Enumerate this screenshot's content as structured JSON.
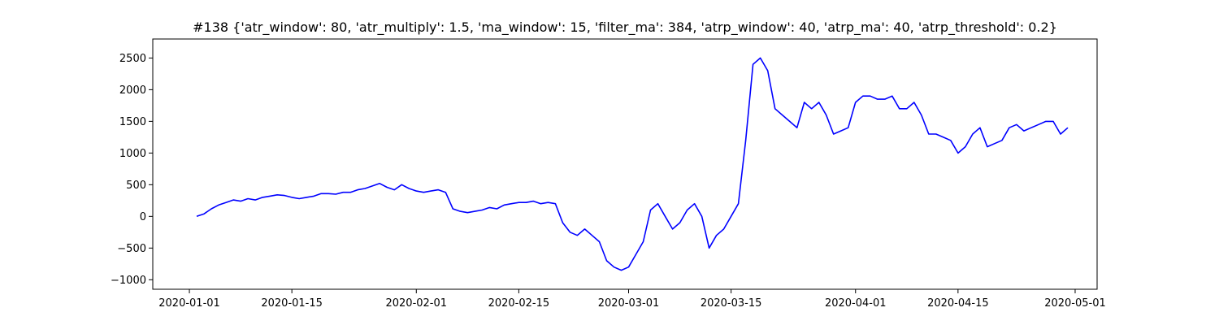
{
  "chart_data": {
    "type": "line",
    "title": "#138 {'atr_window': 80, 'atr_multiply': 1.5, 'ma_window': 15, 'filter_ma': 384, 'atrp_window': 40, 'atrp_ma': 40, 'atrp_threshold': 0.2}",
    "xlabel": "",
    "ylabel": "",
    "x_type": "date",
    "xlim": [
      "2019-12-27",
      "2020-05-04"
    ],
    "ylim": [
      -1150,
      2800
    ],
    "x_ticks": [
      "2020-01-01",
      "2020-01-15",
      "2020-02-01",
      "2020-02-15",
      "2020-03-01",
      "2020-03-15",
      "2020-04-01",
      "2020-04-15",
      "2020-05-01"
    ],
    "y_ticks": [
      -1000,
      -500,
      0,
      500,
      1000,
      1500,
      2000,
      2500
    ],
    "grid": false,
    "colors": {
      "line": "#0000ff"
    },
    "series": [
      {
        "x": [
          "2020-01-02",
          "2020-01-03",
          "2020-01-04",
          "2020-01-05",
          "2020-01-06",
          "2020-01-07",
          "2020-01-08",
          "2020-01-09",
          "2020-01-10",
          "2020-01-11",
          "2020-01-12",
          "2020-01-13",
          "2020-01-14",
          "2020-01-15",
          "2020-01-16",
          "2020-01-17",
          "2020-01-18",
          "2020-01-19",
          "2020-01-20",
          "2020-01-21",
          "2020-01-22",
          "2020-01-23",
          "2020-01-24",
          "2020-01-25",
          "2020-01-26",
          "2020-01-27",
          "2020-01-28",
          "2020-01-29",
          "2020-01-30",
          "2020-01-31",
          "2020-02-01",
          "2020-02-02",
          "2020-02-03",
          "2020-02-04",
          "2020-02-05",
          "2020-02-06",
          "2020-02-07",
          "2020-02-08",
          "2020-02-09",
          "2020-02-10",
          "2020-02-11",
          "2020-02-12",
          "2020-02-13",
          "2020-02-14",
          "2020-02-15",
          "2020-02-16",
          "2020-02-17",
          "2020-02-18",
          "2020-02-19",
          "2020-02-20",
          "2020-02-21",
          "2020-02-22",
          "2020-02-23",
          "2020-02-24",
          "2020-02-25",
          "2020-02-26",
          "2020-02-27",
          "2020-02-28",
          "2020-02-29",
          "2020-03-01",
          "2020-03-02",
          "2020-03-03",
          "2020-03-04",
          "2020-03-05",
          "2020-03-06",
          "2020-03-07",
          "2020-03-08",
          "2020-03-09",
          "2020-03-10",
          "2020-03-11",
          "2020-03-12",
          "2020-03-13",
          "2020-03-14",
          "2020-03-15",
          "2020-03-16",
          "2020-03-17",
          "2020-03-18",
          "2020-03-19",
          "2020-03-20",
          "2020-03-21",
          "2020-03-22",
          "2020-03-23",
          "2020-03-24",
          "2020-03-25",
          "2020-03-26",
          "2020-03-27",
          "2020-03-28",
          "2020-03-29",
          "2020-03-30",
          "2020-03-31",
          "2020-04-01",
          "2020-04-02",
          "2020-04-03",
          "2020-04-04",
          "2020-04-05",
          "2020-04-06",
          "2020-04-07",
          "2020-04-08",
          "2020-04-09",
          "2020-04-10",
          "2020-04-11",
          "2020-04-12",
          "2020-04-13",
          "2020-04-14",
          "2020-04-15",
          "2020-04-16",
          "2020-04-17",
          "2020-04-18",
          "2020-04-19",
          "2020-04-20",
          "2020-04-21",
          "2020-04-22",
          "2020-04-23",
          "2020-04-24",
          "2020-04-25",
          "2020-04-26",
          "2020-04-27",
          "2020-04-28",
          "2020-04-29",
          "2020-04-30"
        ],
        "y": [
          0,
          40,
          120,
          180,
          220,
          260,
          240,
          280,
          260,
          300,
          320,
          340,
          330,
          300,
          280,
          300,
          320,
          360,
          360,
          350,
          380,
          380,
          420,
          440,
          480,
          520,
          460,
          420,
          500,
          440,
          400,
          380,
          400,
          420,
          380,
          120,
          80,
          60,
          80,
          100,
          140,
          120,
          180,
          200,
          220,
          220,
          240,
          200,
          220,
          200,
          -100,
          -250,
          -300,
          -200,
          -300,
          -400,
          -700,
          -800,
          -850,
          -800,
          -600,
          -400,
          100,
          200,
          0,
          -200,
          -100,
          100,
          200,
          0,
          -500,
          -300,
          -200,
          0,
          200,
          1200,
          2400,
          2500,
          2300,
          1700,
          1600,
          1500,
          1400,
          1800,
          1700,
          1800,
          1600,
          1300,
          1350,
          1400,
          1800,
          1900,
          1900,
          1850,
          1850,
          1900,
          1700,
          1700,
          1800,
          1600,
          1300,
          1300,
          1250,
          1200,
          1000,
          1100,
          1300,
          1400,
          1100,
          1150,
          1200,
          1400,
          1450,
          1350,
          1400,
          1450,
          1500,
          1500,
          1300,
          1400
        ]
      }
    ]
  }
}
